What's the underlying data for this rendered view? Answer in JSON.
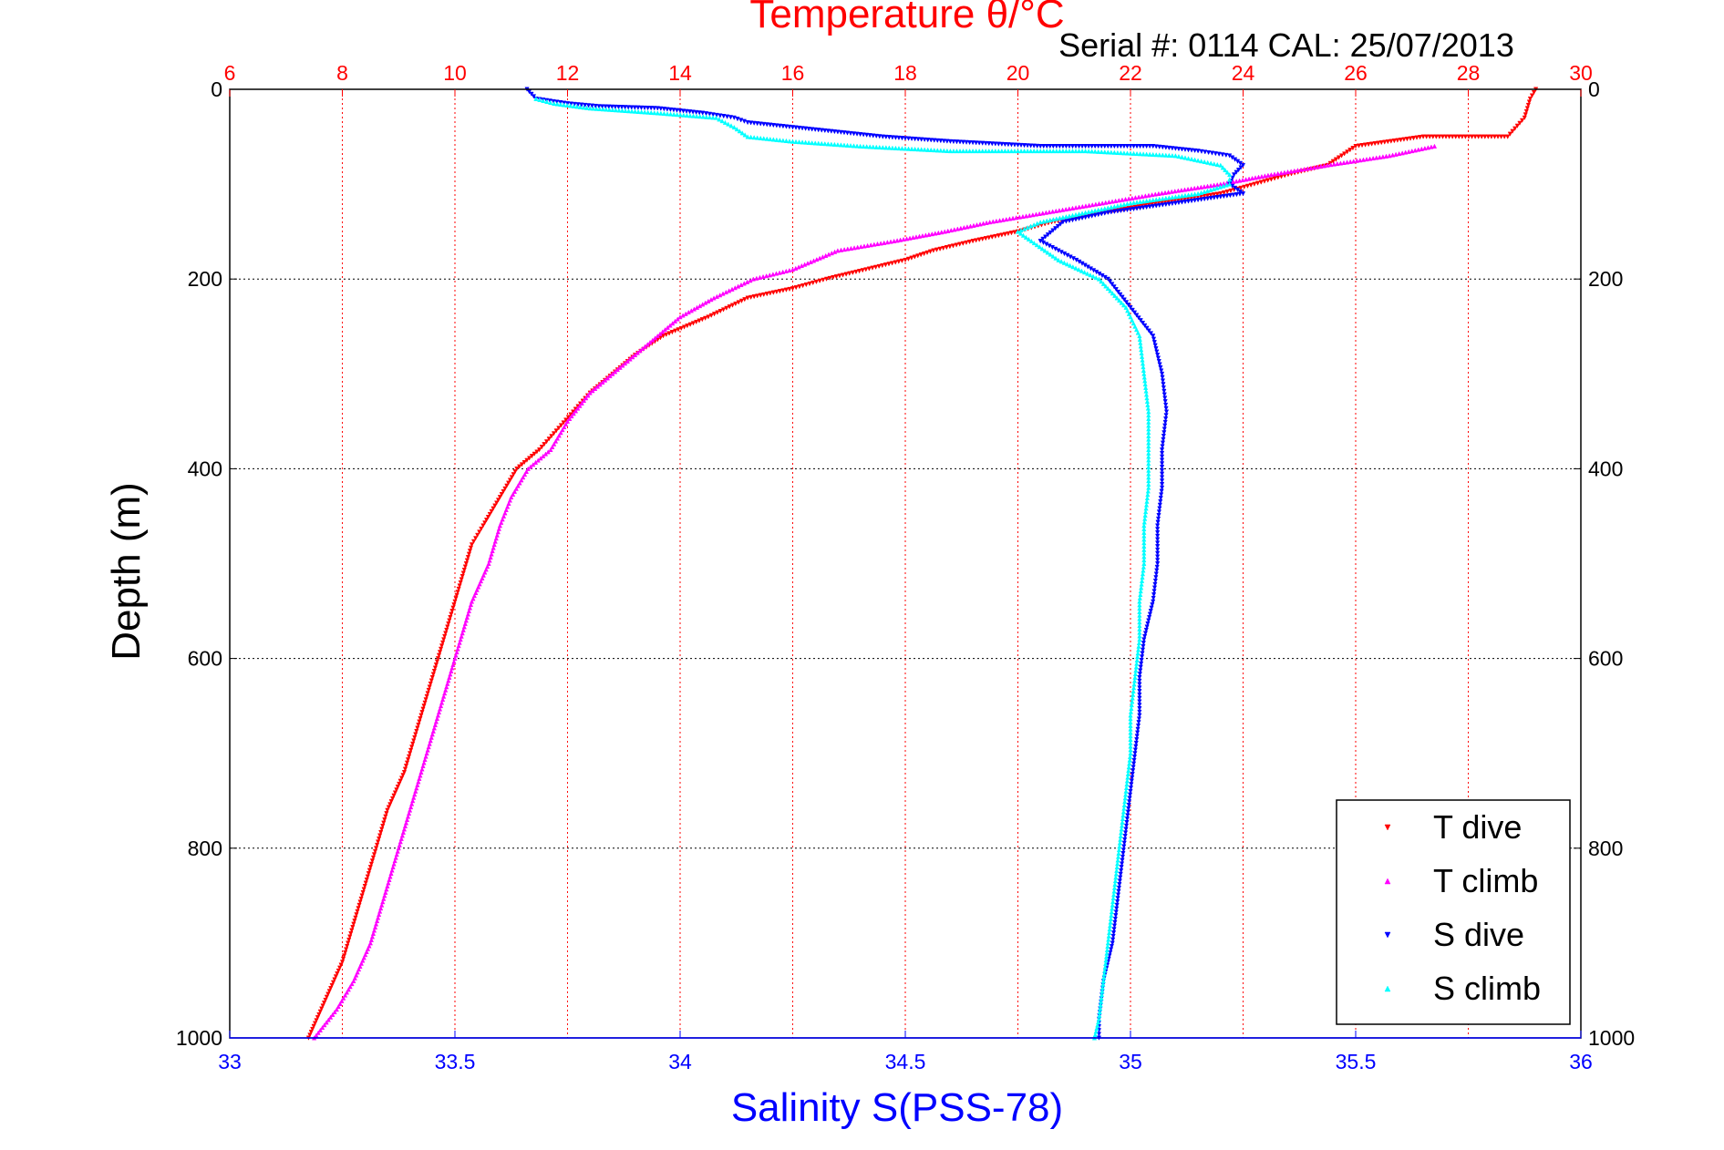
{
  "chart_data": {
    "type": "scatter",
    "title": "Temperature θ/°C",
    "subtitle": "Serial #: 0114  CAL: 25/07/2013",
    "xlabel": "Salinity S(PSS-78)",
    "ylabel": "Depth (m)",
    "x_top": {
      "label": "Temperature θ/°C",
      "lim": [
        6,
        30
      ],
      "ticks": [
        "6",
        "8",
        "10",
        "12",
        "14",
        "16",
        "18",
        "20",
        "22",
        "24",
        "26",
        "28",
        "30"
      ]
    },
    "x_bottom": {
      "label": "Salinity S(PSS-78)",
      "lim": [
        33,
        36
      ],
      "ticks": [
        "33",
        "33.5",
        "34",
        "34.5",
        "35",
        "35.5",
        "36"
      ]
    },
    "y": {
      "label": "Depth (m)",
      "lim": [
        0,
        1000
      ],
      "reversed": true,
      "ticks": [
        "0",
        "200",
        "400",
        "600",
        "800",
        "1000"
      ]
    },
    "grid": true,
    "legend_position": "bottom-right",
    "colors": {
      "temperature_axis": "#ff0000",
      "salinity_axis": "#0000ff",
      "grid": "#000000",
      "frame": "#000000"
    },
    "series": [
      {
        "name": "T dive",
        "axis": "temperature",
        "color": "#ff0000",
        "marker": "triangle-down",
        "points": [
          [
            29.2,
            0
          ],
          [
            29.1,
            10
          ],
          [
            29.0,
            30
          ],
          [
            28.7,
            50
          ],
          [
            27.2,
            50
          ],
          [
            26.0,
            60
          ],
          [
            25.5,
            80
          ],
          [
            24.8,
            90
          ],
          [
            24.2,
            100
          ],
          [
            23.6,
            110
          ],
          [
            22.5,
            120
          ],
          [
            21.5,
            130
          ],
          [
            20.6,
            140
          ],
          [
            20.0,
            150
          ],
          [
            19.2,
            160
          ],
          [
            18.5,
            170
          ],
          [
            18.0,
            180
          ],
          [
            17.3,
            190
          ],
          [
            16.6,
            200
          ],
          [
            16.0,
            210
          ],
          [
            15.2,
            220
          ],
          [
            14.5,
            240
          ],
          [
            13.7,
            260
          ],
          [
            13.2,
            280
          ],
          [
            12.8,
            300
          ],
          [
            12.4,
            320
          ],
          [
            12.1,
            340
          ],
          [
            11.8,
            360
          ],
          [
            11.5,
            380
          ],
          [
            11.1,
            400
          ],
          [
            10.8,
            430
          ],
          [
            10.5,
            460
          ],
          [
            10.3,
            480
          ],
          [
            10.1,
            520
          ],
          [
            9.9,
            560
          ],
          [
            9.7,
            600
          ],
          [
            9.5,
            640
          ],
          [
            9.3,
            680
          ],
          [
            9.1,
            720
          ],
          [
            8.8,
            760
          ],
          [
            8.6,
            800
          ],
          [
            8.4,
            840
          ],
          [
            8.2,
            880
          ],
          [
            8.0,
            920
          ],
          [
            7.7,
            960
          ],
          [
            7.4,
            1000
          ]
        ]
      },
      {
        "name": "T climb",
        "axis": "temperature",
        "color": "#ff00ff",
        "marker": "triangle-up",
        "points": [
          [
            27.4,
            60
          ],
          [
            26.6,
            70
          ],
          [
            25.5,
            80
          ],
          [
            24.5,
            90
          ],
          [
            23.6,
            100
          ],
          [
            22.5,
            110
          ],
          [
            21.5,
            120
          ],
          [
            20.5,
            130
          ],
          [
            19.5,
            140
          ],
          [
            18.7,
            150
          ],
          [
            17.8,
            160
          ],
          [
            16.8,
            170
          ],
          [
            16.0,
            190
          ],
          [
            15.3,
            200
          ],
          [
            14.6,
            220
          ],
          [
            14.0,
            240
          ],
          [
            13.6,
            260
          ],
          [
            13.2,
            280
          ],
          [
            12.8,
            300
          ],
          [
            12.4,
            320
          ],
          [
            12.0,
            350
          ],
          [
            11.7,
            380
          ],
          [
            11.3,
            400
          ],
          [
            11.0,
            430
          ],
          [
            10.8,
            460
          ],
          [
            10.6,
            500
          ],
          [
            10.3,
            540
          ],
          [
            10.1,
            580
          ],
          [
            9.9,
            620
          ],
          [
            9.7,
            660
          ],
          [
            9.5,
            700
          ],
          [
            9.3,
            740
          ],
          [
            9.1,
            780
          ],
          [
            8.9,
            820
          ],
          [
            8.7,
            860
          ],
          [
            8.5,
            900
          ],
          [
            8.2,
            940
          ],
          [
            7.9,
            970
          ],
          [
            7.5,
            1000
          ]
        ]
      },
      {
        "name": "S dive",
        "axis": "salinity",
        "color": "#0000ff",
        "marker": "triangle-down",
        "points": [
          [
            33.66,
            0
          ],
          [
            33.68,
            10
          ],
          [
            33.75,
            15
          ],
          [
            33.82,
            18
          ],
          [
            33.95,
            20
          ],
          [
            34.05,
            25
          ],
          [
            34.12,
            30
          ],
          [
            34.15,
            35
          ],
          [
            34.25,
            40
          ],
          [
            34.35,
            45
          ],
          [
            34.45,
            50
          ],
          [
            34.6,
            55
          ],
          [
            34.8,
            60
          ],
          [
            35.05,
            60
          ],
          [
            35.15,
            65
          ],
          [
            35.22,
            70
          ],
          [
            35.25,
            80
          ],
          [
            35.23,
            90
          ],
          [
            35.22,
            100
          ],
          [
            35.25,
            110
          ],
          [
            35.1,
            120
          ],
          [
            34.95,
            130
          ],
          [
            34.85,
            140
          ],
          [
            34.8,
            160
          ],
          [
            34.88,
            180
          ],
          [
            34.95,
            200
          ],
          [
            35.0,
            230
          ],
          [
            35.05,
            260
          ],
          [
            35.07,
            300
          ],
          [
            35.08,
            340
          ],
          [
            35.07,
            380
          ],
          [
            35.07,
            420
          ],
          [
            35.06,
            460
          ],
          [
            35.06,
            500
          ],
          [
            35.05,
            540
          ],
          [
            35.03,
            580
          ],
          [
            35.02,
            620
          ],
          [
            35.02,
            660
          ],
          [
            35.01,
            700
          ],
          [
            35.0,
            740
          ],
          [
            34.99,
            780
          ],
          [
            34.98,
            820
          ],
          [
            34.97,
            860
          ],
          [
            34.96,
            900
          ],
          [
            34.94,
            940
          ],
          [
            34.93,
            980
          ],
          [
            34.93,
            1000
          ]
        ]
      },
      {
        "name": "S climb",
        "axis": "salinity",
        "color": "#00ffff",
        "marker": "triangle-up",
        "points": [
          [
            33.68,
            10
          ],
          [
            33.72,
            15
          ],
          [
            33.8,
            20
          ],
          [
            33.95,
            25
          ],
          [
            34.08,
            30
          ],
          [
            34.12,
            40
          ],
          [
            34.15,
            50
          ],
          [
            34.25,
            55
          ],
          [
            34.4,
            60
          ],
          [
            34.6,
            65
          ],
          [
            34.9,
            65
          ],
          [
            35.1,
            70
          ],
          [
            35.2,
            80
          ],
          [
            35.22,
            90
          ],
          [
            35.22,
            100
          ],
          [
            35.15,
            110
          ],
          [
            35.0,
            120
          ],
          [
            34.9,
            130
          ],
          [
            34.8,
            140
          ],
          [
            34.75,
            150
          ],
          [
            34.78,
            160
          ],
          [
            34.84,
            180
          ],
          [
            34.93,
            200
          ],
          [
            34.99,
            230
          ],
          [
            35.02,
            260
          ],
          [
            35.03,
            300
          ],
          [
            35.04,
            340
          ],
          [
            35.04,
            380
          ],
          [
            35.04,
            420
          ],
          [
            35.03,
            460
          ],
          [
            35.03,
            500
          ],
          [
            35.02,
            540
          ],
          [
            35.02,
            580
          ],
          [
            35.01,
            620
          ],
          [
            35.0,
            660
          ],
          [
            35.0,
            700
          ],
          [
            34.99,
            740
          ],
          [
            34.98,
            780
          ],
          [
            34.97,
            820
          ],
          [
            34.96,
            860
          ],
          [
            34.95,
            900
          ],
          [
            34.94,
            940
          ],
          [
            34.93,
            980
          ],
          [
            34.92,
            1000
          ]
        ]
      }
    ]
  }
}
